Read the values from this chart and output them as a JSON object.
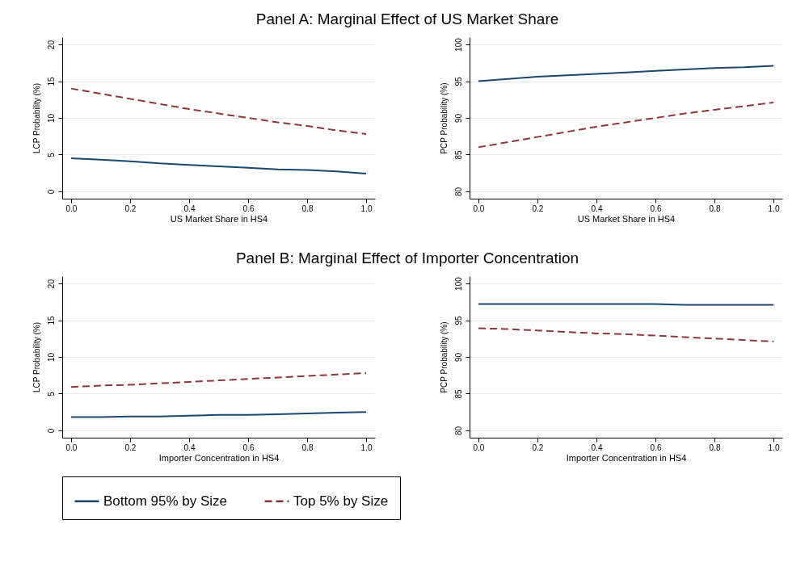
{
  "chart_data": [
    {
      "type": "line",
      "title": "Panel A: Marginal Effect of US Market Share",
      "xlabel": "US Market Share in HS4",
      "ylabel": "LCP Probability (%)",
      "x": [
        0,
        0.1,
        0.2,
        0.3,
        0.4,
        0.5,
        0.6,
        0.7,
        0.8,
        0.9,
        1.0
      ],
      "xlim": [
        -0.03,
        1.03
      ],
      "xticks": [
        {
          "value": 0,
          "label": "0.0"
        },
        {
          "value": 0.2,
          "label": "0.2"
        },
        {
          "value": 0.4,
          "label": "0.4"
        },
        {
          "value": 0.6,
          "label": "0.6"
        },
        {
          "value": 0.8,
          "label": "0.8"
        },
        {
          "value": 1,
          "label": "1.0"
        }
      ],
      "ylim": [
        -1,
        21
      ],
      "yticks": [
        0,
        5,
        10,
        15,
        20
      ],
      "grid": "y",
      "legend": "bottom",
      "series": [
        {
          "name": "Bottom 95% by Size",
          "color": "#1a476f",
          "line_style": "solid",
          "values": [
            4.5,
            4.3,
            4.1,
            3.8,
            3.6,
            3.4,
            3.2,
            3.0,
            2.9,
            2.7,
            2.4
          ]
        },
        {
          "name": "Top 5% by Size",
          "color": "#90353b",
          "line_style": "dashed",
          "values": [
            14.0,
            13.3,
            12.6,
            11.9,
            11.2,
            10.6,
            10.0,
            9.4,
            8.9,
            8.3,
            7.8
          ]
        }
      ]
    },
    {
      "type": "line",
      "xlabel": "US Market Share in HS4",
      "ylabel": "PCP Probability (%)",
      "x": [
        0,
        0.1,
        0.2,
        0.3,
        0.4,
        0.5,
        0.6,
        0.7,
        0.8,
        0.9,
        1.0
      ],
      "xlim": [
        -0.03,
        1.03
      ],
      "xticks": [
        {
          "value": 0,
          "label": "0.0"
        },
        {
          "value": 0.2,
          "label": "0.2"
        },
        {
          "value": 0.4,
          "label": "0.4"
        },
        {
          "value": 0.6,
          "label": "0.6"
        },
        {
          "value": 0.8,
          "label": "0.8"
        },
        {
          "value": 1,
          "label": "1.0"
        }
      ],
      "ylim": [
        79,
        101
      ],
      "yticks": [
        80,
        85,
        90,
        95,
        100
      ],
      "grid": "y",
      "legend": "bottom",
      "series": [
        {
          "name": "Bottom 95% by Size",
          "color": "#1a476f",
          "line_style": "solid",
          "values": [
            95.0,
            95.3,
            95.6,
            95.8,
            96.0,
            96.2,
            96.4,
            96.6,
            96.8,
            96.9,
            97.1
          ]
        },
        {
          "name": "Top 5% by Size",
          "color": "#90353b",
          "line_style": "dashed",
          "values": [
            86.0,
            86.7,
            87.4,
            88.1,
            88.8,
            89.4,
            90.0,
            90.6,
            91.1,
            91.6,
            92.1
          ]
        }
      ]
    },
    {
      "type": "line",
      "title": "Panel B: Marginal Effect of Importer Concentration",
      "xlabel": "Importer Concentration in HS4",
      "ylabel": "LCP Probability (%)",
      "x": [
        0,
        0.1,
        0.2,
        0.3,
        0.4,
        0.5,
        0.6,
        0.7,
        0.8,
        0.9,
        1.0
      ],
      "xlim": [
        -0.03,
        1.03
      ],
      "xticks": [
        {
          "value": 0,
          "label": "0.0"
        },
        {
          "value": 0.2,
          "label": "0.2"
        },
        {
          "value": 0.4,
          "label": "0.4"
        },
        {
          "value": 0.6,
          "label": "0.6"
        },
        {
          "value": 0.8,
          "label": "0.8"
        },
        {
          "value": 1,
          "label": "1.0"
        }
      ],
      "ylim": [
        -1,
        21
      ],
      "yticks": [
        0,
        5,
        10,
        15,
        20
      ],
      "grid": "y",
      "legend": "bottom",
      "series": [
        {
          "name": "Bottom 95% by Size",
          "color": "#1a476f",
          "line_style": "solid",
          "values": [
            1.8,
            1.8,
            1.9,
            1.9,
            2.0,
            2.1,
            2.1,
            2.2,
            2.3,
            2.4,
            2.5
          ]
        },
        {
          "name": "Top 5% by Size",
          "color": "#90353b",
          "line_style": "dashed",
          "values": [
            5.9,
            6.1,
            6.2,
            6.4,
            6.6,
            6.8,
            7.0,
            7.2,
            7.4,
            7.6,
            7.8
          ]
        }
      ]
    },
    {
      "type": "line",
      "xlabel": "Importer Concentration in HS4",
      "ylabel": "PCP Probability (%)",
      "x": [
        0,
        0.1,
        0.2,
        0.3,
        0.4,
        0.5,
        0.6,
        0.7,
        0.8,
        0.9,
        1.0
      ],
      "xlim": [
        -0.03,
        1.03
      ],
      "xticks": [
        {
          "value": 0,
          "label": "0.0"
        },
        {
          "value": 0.2,
          "label": "0.2"
        },
        {
          "value": 0.4,
          "label": "0.4"
        },
        {
          "value": 0.6,
          "label": "0.6"
        },
        {
          "value": 0.8,
          "label": "0.8"
        },
        {
          "value": 1,
          "label": "1.0"
        }
      ],
      "ylim": [
        79,
        101
      ],
      "yticks": [
        80,
        85,
        90,
        95,
        100
      ],
      "grid": "y",
      "legend": "bottom",
      "series": [
        {
          "name": "Bottom 95% by Size",
          "color": "#1a476f",
          "line_style": "solid",
          "values": [
            97.2,
            97.2,
            97.2,
            97.2,
            97.2,
            97.2,
            97.2,
            97.1,
            97.1,
            97.1,
            97.1
          ]
        },
        {
          "name": "Top 5% by Size",
          "color": "#90353b",
          "line_style": "dashed",
          "values": [
            93.9,
            93.8,
            93.6,
            93.4,
            93.2,
            93.1,
            92.9,
            92.7,
            92.5,
            92.3,
            92.1
          ]
        }
      ]
    }
  ]
}
